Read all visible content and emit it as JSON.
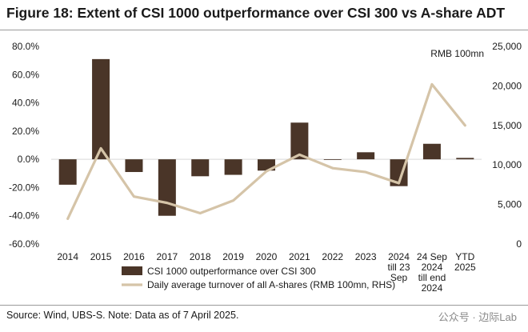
{
  "title": "Figure 18: Extent of CSI 1000 outperformance over CSI 300 vs A-share ADT",
  "source": "Source: Wind, UBS-S. Note: Data as of 7 April 2025.",
  "watermark": "公众号 · 边际Lab",
  "colors": {
    "bar": "#4a3528",
    "line": "#d5c4a8",
    "zero_line": "#d9d9d9"
  },
  "chart_data": {
    "type": "bar+line",
    "categories": [
      [
        "2014"
      ],
      [
        "2015"
      ],
      [
        "2016"
      ],
      [
        "2017"
      ],
      [
        "2018"
      ],
      [
        "2019"
      ],
      [
        "2020"
      ],
      [
        "2021"
      ],
      [
        "2022"
      ],
      [
        "2023"
      ],
      [
        "2024",
        "till 23",
        "Sep"
      ],
      [
        "24 Sep",
        "2024",
        "till end",
        "2024"
      ],
      [
        "YTD",
        "2025"
      ]
    ],
    "left_axis": {
      "min": -0.6,
      "max": 0.8,
      "ticks": [
        0.8,
        0.6,
        0.4,
        0.2,
        0.0,
        -0.2,
        -0.4,
        -0.6
      ],
      "tick_labels": [
        "80.0%",
        "60.0%",
        "40.0%",
        "20.0%",
        "0.0%",
        "-20.0%",
        "-40.0%",
        "-60.0%"
      ]
    },
    "right_axis": {
      "label": "RMB 100mn",
      "min": 0,
      "max": 25000,
      "ticks": [
        25000,
        20000,
        15000,
        10000,
        5000,
        0
      ],
      "tick_labels": [
        "25,000",
        "20,000",
        "15,000",
        "10,000",
        "5,000",
        "0"
      ]
    },
    "series": [
      {
        "name": "CSI 1000 outperformance over CSI 300",
        "type": "bar",
        "axis": "left",
        "values": [
          -0.18,
          0.71,
          -0.09,
          -0.4,
          -0.12,
          -0.11,
          -0.08,
          0.26,
          0.0,
          0.05,
          -0.19,
          0.11,
          0.01
        ]
      },
      {
        "name": "Daily average turnover of all A-shares (RMB 100mn, RHS)",
        "type": "line",
        "axis": "right",
        "values": [
          3200,
          12100,
          6000,
          5200,
          3900,
          5500,
          9200,
          11300,
          9600,
          9100,
          7700,
          20200,
          15000
        ]
      }
    ],
    "legend": "bottom-center",
    "grid": false
  }
}
